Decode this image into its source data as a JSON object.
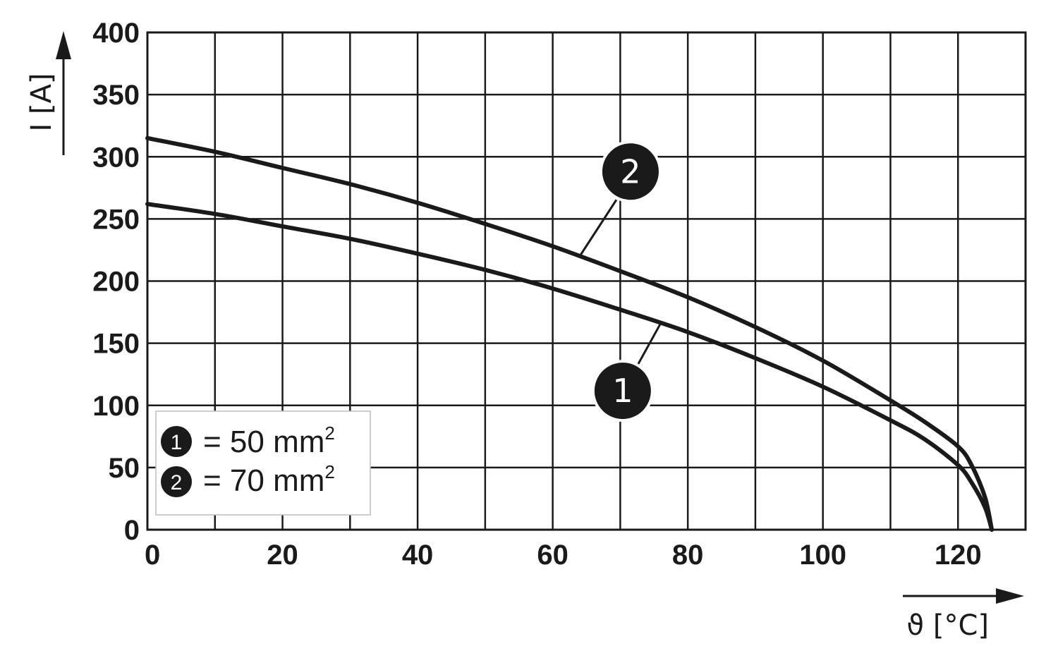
{
  "chart_data": {
    "type": "line",
    "title": "",
    "xlabel": "ϑ [°C]",
    "ylabel": "I [A]",
    "xlim": [
      0,
      130
    ],
    "ylim": [
      0,
      400
    ],
    "x_ticks": [
      0,
      20,
      40,
      60,
      80,
      100,
      120
    ],
    "y_ticks": [
      0,
      50,
      100,
      150,
      200,
      250,
      300,
      350,
      400
    ],
    "grid": true,
    "legend_position": "bottom-left",
    "series": [
      {
        "name": "1",
        "legend_marker": "1",
        "legend_text": "= 50 mm",
        "legend_sup": "2",
        "x": [
          0,
          10,
          20,
          30,
          40,
          50,
          60,
          70,
          80,
          90,
          100,
          110,
          115,
          120,
          122,
          124,
          125
        ],
        "y": [
          262,
          254,
          244,
          234,
          222,
          209,
          194,
          177,
          159,
          138,
          115,
          88,
          73,
          52,
          38,
          18,
          0
        ]
      },
      {
        "name": "2",
        "legend_marker": "2",
        "legend_text": "= 70 mm",
        "legend_sup": "2",
        "x": [
          0,
          10,
          20,
          30,
          40,
          50,
          60,
          70,
          80,
          90,
          100,
          110,
          115,
          120,
          122,
          124,
          125
        ],
        "y": [
          315,
          304,
          291,
          278,
          263,
          246,
          228,
          208,
          187,
          163,
          136,
          104,
          87,
          67,
          52,
          26,
          0
        ]
      }
    ],
    "annotations": [
      {
        "label": "2",
        "series": "2",
        "at_x": 64
      },
      {
        "label": "1",
        "series": "1",
        "at_x": 76
      }
    ]
  }
}
